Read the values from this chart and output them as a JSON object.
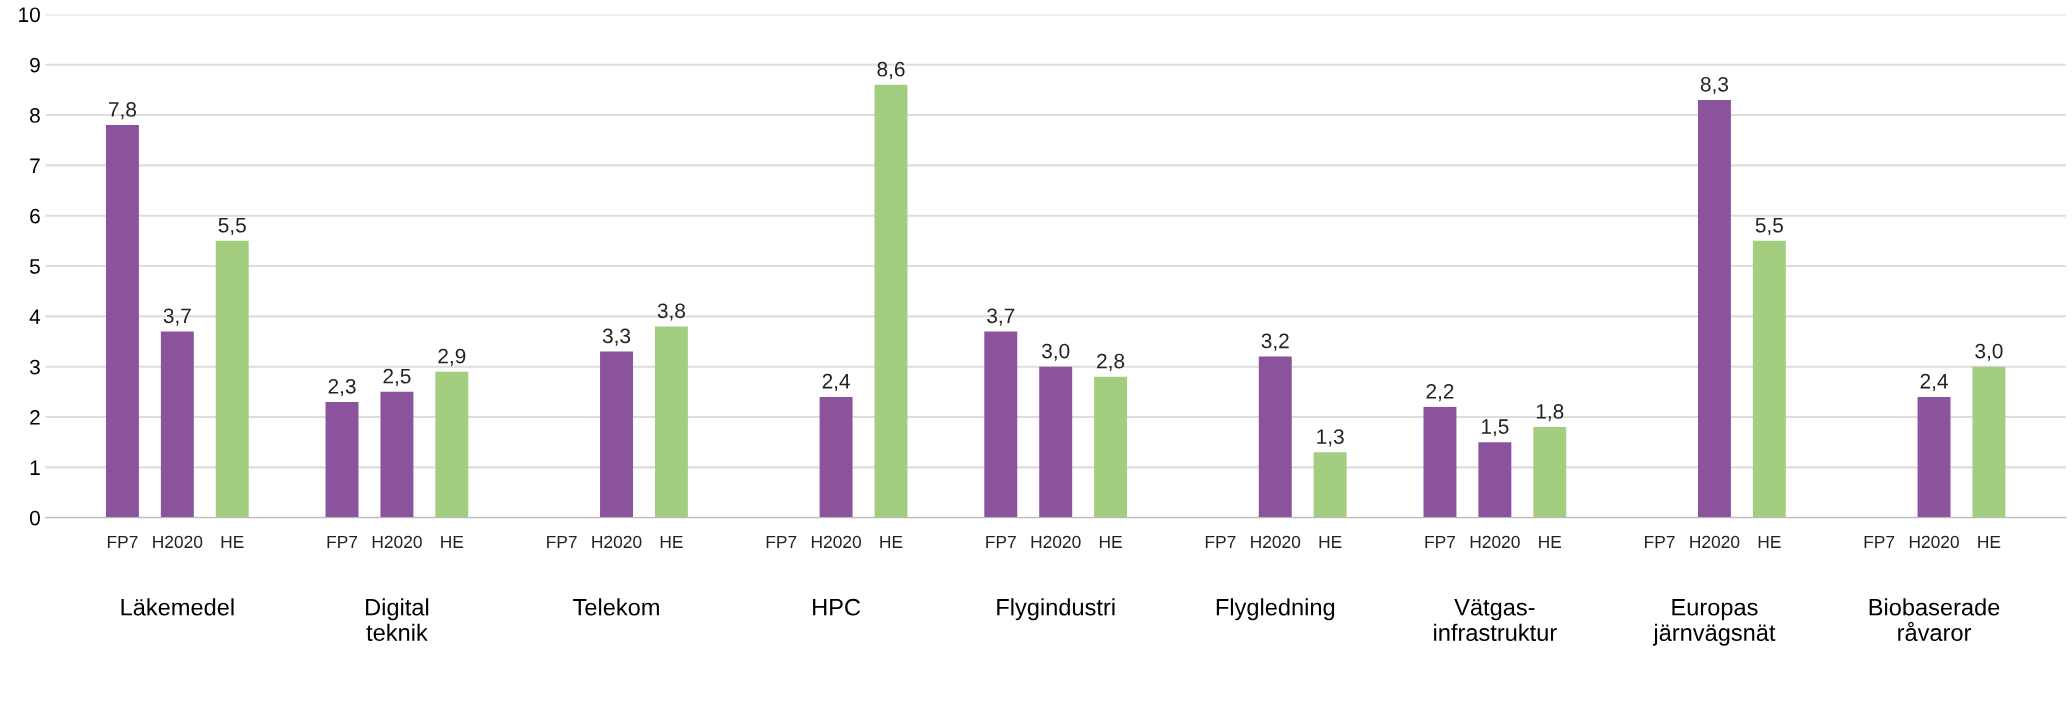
{
  "chart_data": {
    "type": "bar",
    "categories": [
      "Läkemedel",
      "Digital\nteknik",
      "Telekom",
      "HPC",
      "Flygindustri",
      "Flygledning",
      "Vätgas-\ninfrastruktur",
      "Europas\njärnvägsnät",
      "Biobaserade\nråvaror"
    ],
    "series": [
      {
        "name": "FP7",
        "color": "#8b539c",
        "values": [
          7.8,
          2.3,
          null,
          null,
          3.7,
          null,
          2.2,
          null,
          null
        ],
        "value_labels": [
          "7,8",
          "2,3",
          null,
          null,
          "3,7",
          null,
          "2,2",
          null,
          null
        ]
      },
      {
        "name": "H2020",
        "color": "#8b539c",
        "values": [
          3.7,
          2.5,
          3.3,
          2.4,
          3.0,
          3.2,
          1.5,
          8.3,
          2.4
        ],
        "value_labels": [
          "3,7",
          "2,5",
          "3,3",
          "2,4",
          "3,0",
          "3,2",
          "1,5",
          "8,3",
          "2,4"
        ]
      },
      {
        "name": "HE",
        "color": "#a3cd7f",
        "values": [
          5.5,
          2.9,
          3.8,
          8.6,
          2.8,
          1.3,
          1.8,
          5.5,
          3.0
        ],
        "value_labels": [
          "5,5",
          "2,9",
          "3,8",
          "8,6",
          "2,8",
          "1,3",
          "1,8",
          "5,5",
          "3,0"
        ]
      }
    ],
    "ylim": [
      0,
      10
    ],
    "yticks": [
      0,
      1,
      2,
      3,
      4,
      5,
      6,
      7,
      8,
      9,
      10
    ],
    "grid": "y"
  }
}
